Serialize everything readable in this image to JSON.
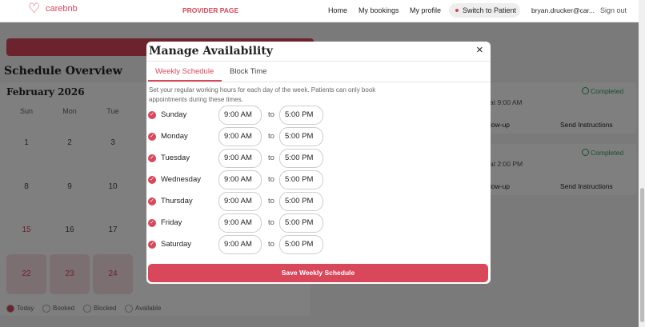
{
  "nav": {
    "brand": "carebnb",
    "section": "PROVIDER PAGE",
    "links": [
      "Home",
      "My bookings",
      "My profile"
    ],
    "switch": "Switch to Patient",
    "user": "bryan.drucker@car...",
    "signout": "Sign out"
  },
  "background": {
    "heading": "Schedule Overview",
    "month": "February 2026",
    "weekdays": [
      "Sun",
      "Mon",
      "Tue"
    ],
    "weeks": [
      [
        1,
        2,
        3
      ],
      [
        8,
        9,
        10
      ],
      [
        15,
        16,
        17
      ],
      [
        22,
        23,
        24
      ]
    ],
    "legend": [
      "Today",
      "Booked",
      "Blocked",
      "Available"
    ],
    "cards": [
      {
        "status": "Completed",
        "time": "at 9:00 AM",
        "action": "low-up",
        "send": "Send Instructions"
      },
      {
        "status": "Completed",
        "time": "at 2:00 PM",
        "action": "low-up",
        "send": "Send Instructions"
      }
    ]
  },
  "modal": {
    "title": "Manage Availability",
    "tabs": [
      "Weekly Schedule",
      "Block Time"
    ],
    "description": "Set your regular working hours for each day of the week. Patients can only book appointments during these times.",
    "rows": [
      {
        "day": "Sunday",
        "start": "9:00 AM",
        "sep": "to",
        "end": "5:00 PM"
      },
      {
        "day": "Monday",
        "start": "9:00 AM",
        "sep": "to",
        "end": "5:00 PM"
      },
      {
        "day": "Tuesday",
        "start": "9:00 AM",
        "sep": "to",
        "end": "5:00 PM"
      },
      {
        "day": "Wednesday",
        "start": "9:00 AM",
        "sep": "to",
        "end": "5:00 PM"
      },
      {
        "day": "Thursday",
        "start": "9:00 AM",
        "sep": "to",
        "end": "5:00 PM"
      },
      {
        "day": "Friday",
        "start": "9:00 AM",
        "sep": "to",
        "end": "5:00 PM"
      },
      {
        "day": "Saturday",
        "start": "9:00 AM",
        "sep": "to",
        "end": "5:00 PM"
      }
    ],
    "save": "Save Weekly Schedule"
  }
}
